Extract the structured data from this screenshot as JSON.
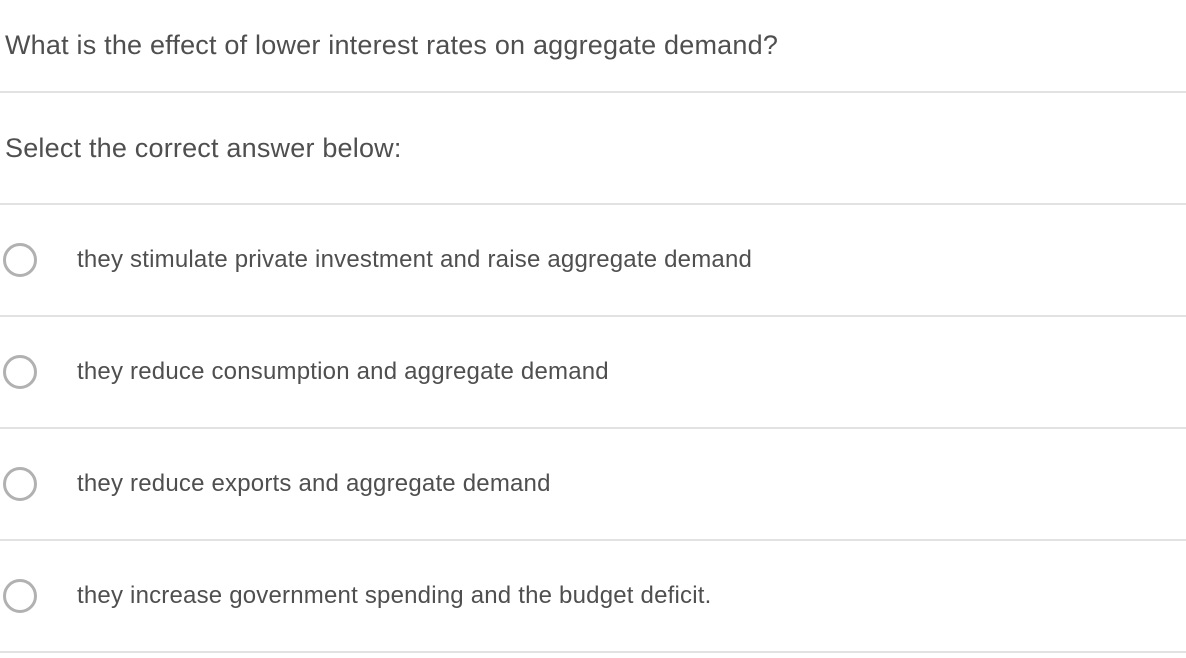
{
  "question": "What is the effect of lower interest rates on aggregate demand?",
  "prompt": "Select the correct answer below:",
  "options": [
    {
      "label": "they stimulate private investment and raise aggregate demand",
      "selected": false
    },
    {
      "label": "they reduce consumption and aggregate demand",
      "selected": false
    },
    {
      "label": "they reduce exports and aggregate demand",
      "selected": false
    },
    {
      "label": "they increase government spending and the budget deficit.",
      "selected": false
    }
  ],
  "colors": {
    "text": "#4f4f4f",
    "divider": "#e2e2e2",
    "radio_border": "#b1b1b1",
    "background": "#ffffff"
  }
}
